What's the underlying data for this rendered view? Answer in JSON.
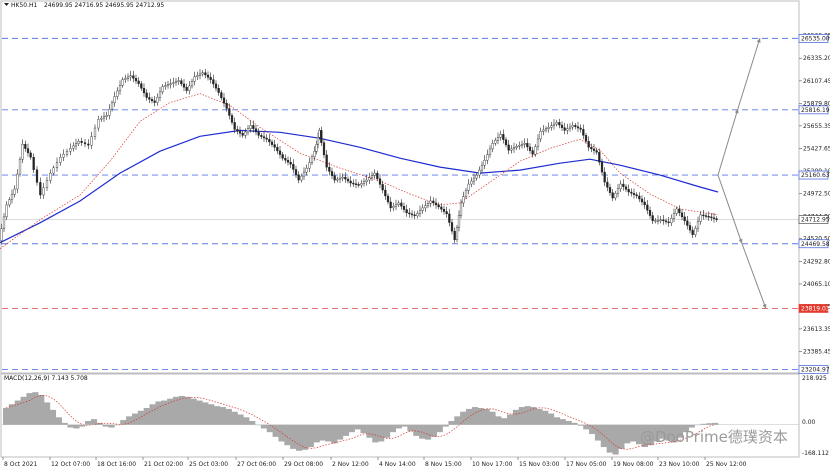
{
  "chart_data": {
    "type": "candlestick",
    "header": {
      "symbol": "HK50.H1",
      "ohlc_text": "24699.95 24716.95 24695.95 24712.95"
    },
    "price_axis": {
      "min": 23180,
      "max": 26780,
      "ticks": [
        "26563.05",
        "26335.20",
        "26107.45",
        "25879.80",
        "25655.35",
        "25427.65",
        "25200.10",
        "24972.50",
        "24744.80",
        "24520.50",
        "24292.80",
        "24065.10",
        "23841.05",
        "23613.35",
        "23385.45"
      ]
    },
    "last_price": "24712.95",
    "levels": [
      {
        "label": "26535.00",
        "value": 26535.0,
        "style": "blue-dashed"
      },
      {
        "label": "25816.19",
        "value": 25816.19,
        "style": "blue-dashed"
      },
      {
        "label": "25160.63",
        "value": 25160.63,
        "style": "blue-dashed"
      },
      {
        "label": "24469.58",
        "value": 24469.58,
        "style": "blue-dashed"
      },
      {
        "label": "23819.03",
        "value": 23819.03,
        "style": "red-dashed"
      },
      {
        "label": "23204.97",
        "value": 23204.97,
        "style": "blue-dashed"
      }
    ],
    "x_labels": [
      "8 Oct 2021",
      "12 Oct 07:00",
      "18 Oct 16:00",
      "21 Oct 02:00",
      "25 Oct 03:00",
      "27 Oct 06:00",
      "29 Oct 08:00",
      "2 Nov 12:00",
      "4 Nov 14:00",
      "8 Nov 15:00",
      "10 Nov 17:00",
      "15 Nov 03:00",
      "17 Nov 05:00",
      "19 Nov 08:00",
      "23 Nov 10:00",
      "25 Nov 12:00"
    ],
    "price_path": [
      [
        0,
        24500
      ],
      [
        8,
        24860
      ],
      [
        16,
        25020
      ],
      [
        24,
        25470
      ],
      [
        32,
        25340
      ],
      [
        42,
        24960
      ],
      [
        52,
        25180
      ],
      [
        62,
        25340
      ],
      [
        72,
        25430
      ],
      [
        80,
        25500
      ],
      [
        90,
        25460
      ],
      [
        100,
        25720
      ],
      [
        108,
        25760
      ],
      [
        116,
        25950
      ],
      [
        124,
        26120
      ],
      [
        132,
        26160
      ],
      [
        140,
        26080
      ],
      [
        148,
        25940
      ],
      [
        156,
        25890
      ],
      [
        164,
        26050
      ],
      [
        172,
        26080
      ],
      [
        180,
        26110
      ],
      [
        188,
        26010
      ],
      [
        196,
        26150
      ],
      [
        204,
        26190
      ],
      [
        212,
        26120
      ],
      [
        220,
        25990
      ],
      [
        228,
        25830
      ],
      [
        236,
        25620
      ],
      [
        244,
        25560
      ],
      [
        252,
        25660
      ],
      [
        260,
        25560
      ],
      [
        268,
        25520
      ],
      [
        276,
        25440
      ],
      [
        284,
        25330
      ],
      [
        292,
        25270
      ],
      [
        300,
        25110
      ],
      [
        308,
        25230
      ],
      [
        316,
        25400
      ],
      [
        320,
        25610
      ],
      [
        328,
        25240
      ],
      [
        336,
        25110
      ],
      [
        344,
        25140
      ],
      [
        352,
        25080
      ],
      [
        360,
        25060
      ],
      [
        368,
        25110
      ],
      [
        376,
        25180
      ],
      [
        384,
        25010
      ],
      [
        392,
        24830
      ],
      [
        400,
        24880
      ],
      [
        408,
        24780
      ],
      [
        416,
        24750
      ],
      [
        424,
        24830
      ],
      [
        432,
        24900
      ],
      [
        440,
        24840
      ],
      [
        448,
        24770
      ],
      [
        456,
        24510
      ],
      [
        462,
        24880
      ],
      [
        470,
        25070
      ],
      [
        478,
        25160
      ],
      [
        486,
        25310
      ],
      [
        494,
        25480
      ],
      [
        502,
        25570
      ],
      [
        510,
        25410
      ],
      [
        518,
        25450
      ],
      [
        526,
        25480
      ],
      [
        534,
        25370
      ],
      [
        542,
        25600
      ],
      [
        550,
        25640
      ],
      [
        558,
        25690
      ],
      [
        566,
        25610
      ],
      [
        574,
        25660
      ],
      [
        582,
        25620
      ],
      [
        590,
        25440
      ],
      [
        598,
        25390
      ],
      [
        606,
        25090
      ],
      [
        614,
        24930
      ],
      [
        622,
        25070
      ],
      [
        630,
        24990
      ],
      [
        638,
        24950
      ],
      [
        646,
        24860
      ],
      [
        654,
        24700
      ],
      [
        662,
        24710
      ],
      [
        670,
        24680
      ],
      [
        678,
        24820
      ],
      [
        686,
        24700
      ],
      [
        694,
        24560
      ],
      [
        702,
        24760
      ],
      [
        710,
        24740
      ],
      [
        718,
        24713
      ]
    ],
    "moving_averages": [
      {
        "color": "#1e2bd1",
        "path": [
          [
            0,
            24480
          ],
          [
            40,
            24680
          ],
          [
            80,
            24900
          ],
          [
            120,
            25180
          ],
          [
            160,
            25400
          ],
          [
            200,
            25550
          ],
          [
            240,
            25610
          ],
          [
            280,
            25590
          ],
          [
            320,
            25530
          ],
          [
            360,
            25440
          ],
          [
            400,
            25330
          ],
          [
            440,
            25240
          ],
          [
            480,
            25180
          ],
          [
            520,
            25210
          ],
          [
            560,
            25280
          ],
          [
            590,
            25320
          ],
          [
            620,
            25260
          ],
          [
            660,
            25160
          ],
          [
            700,
            25040
          ],
          [
            718,
            24990
          ]
        ]
      },
      {
        "color": "#d7322a",
        "path": [
          [
            0,
            24420
          ],
          [
            40,
            24710
          ],
          [
            80,
            24960
          ],
          [
            110,
            25300
          ],
          [
            140,
            25700
          ],
          [
            170,
            25890
          ],
          [
            200,
            25980
          ],
          [
            230,
            25860
          ],
          [
            260,
            25640
          ],
          [
            300,
            25380
          ],
          [
            340,
            25230
          ],
          [
            380,
            25100
          ],
          [
            410,
            24970
          ],
          [
            440,
            24860
          ],
          [
            460,
            24880
          ],
          [
            490,
            25090
          ],
          [
            520,
            25300
          ],
          [
            550,
            25430
          ],
          [
            580,
            25520
          ],
          [
            600,
            25410
          ],
          [
            620,
            25180
          ],
          [
            650,
            24970
          ],
          [
            680,
            24820
          ],
          [
            718,
            24760
          ]
        ]
      }
    ],
    "projection_arrows": [
      {
        "from": [
          718,
          25160
        ],
        "to": [
          738,
          25830
        ]
      },
      {
        "from": [
          738,
          25830
        ],
        "to": [
          760,
          26540
        ]
      },
      {
        "from": [
          718,
          25160
        ],
        "to": [
          742,
          24470
        ]
      },
      {
        "from": [
          742,
          24470
        ],
        "to": [
          766,
          23815
        ]
      }
    ],
    "indicator": {
      "label": "MACD(12,26,9) 7.143 5.708",
      "axis_top": "218.925",
      "axis_zero": "0.00",
      "axis_bottom": "-168.112",
      "min": -168.112,
      "max": 218.925,
      "histogram": [
        90,
        110,
        130,
        150,
        170,
        175,
        160,
        120,
        80,
        40,
        10,
        -15,
        -20,
        -10,
        20,
        30,
        10,
        -10,
        -15,
        0,
        25,
        45,
        60,
        75,
        90,
        110,
        125,
        130,
        140,
        150,
        155,
        150,
        140,
        130,
        120,
        110,
        100,
        95,
        85,
        70,
        55,
        40,
        20,
        0,
        -20,
        -40,
        -65,
        -90,
        -110,
        -130,
        -140,
        -135,
        -120,
        -95,
        -85,
        -90,
        -100,
        -80,
        -60,
        -40,
        -25,
        -45,
        -70,
        -95,
        -90,
        -70,
        -40,
        -20,
        -10,
        -35,
        -60,
        -75,
        -80,
        -65,
        -40,
        -10,
        20,
        45,
        70,
        85,
        95,
        90,
        85,
        70,
        45,
        35,
        55,
        80,
        95,
        100,
        95,
        85,
        75,
        60,
        40,
        30,
        20,
        10,
        -5,
        -25,
        -50,
        -85,
        -120,
        -150,
        -160,
        -130,
        -100,
        -90,
        -105,
        -120,
        -110,
        -90,
        -75,
        -85,
        -95,
        -70,
        -40,
        -15,
        0,
        5,
        8,
        10
      ],
      "signal_color": "#d7322a",
      "bar_color": "#a9a9a9"
    },
    "watermark": "@DooPrime德璞资本"
  }
}
